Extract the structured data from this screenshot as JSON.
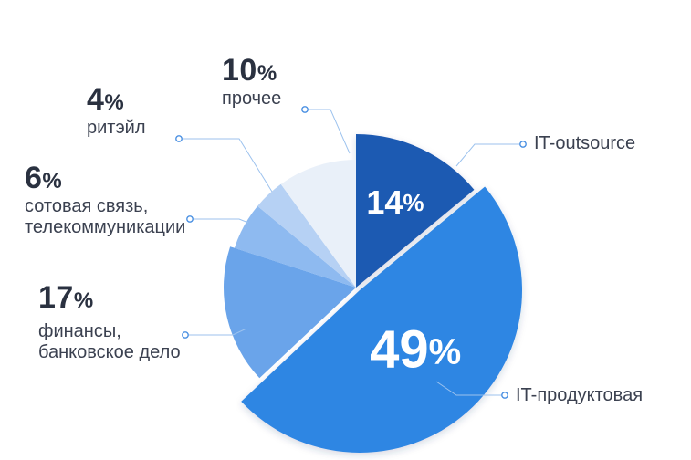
{
  "chart_data": {
    "type": "pie",
    "title": "",
    "slices": [
      {
        "label": "IT-outsource",
        "value": 14,
        "color": "#1e5ab2",
        "display": "14",
        "label_lines": [
          "IT-outsource"
        ]
      },
      {
        "label": "IT-продуктовая",
        "value": 49,
        "color": "#2f86e3",
        "display": "49",
        "label_lines": [
          "IT-продуктовая"
        ]
      },
      {
        "label": "финансы, банковское дело",
        "value": 17,
        "color": "#6aa4ea",
        "display": "17",
        "label_lines": [
          "финансы,",
          "банковское дело"
        ]
      },
      {
        "label": "сотовая связь, телекоммуникации",
        "value": 6,
        "color": "#8ebaf0",
        "display": "6",
        "label_lines": [
          "сотовая связь,",
          "телекоммуникации"
        ]
      },
      {
        "label": "ритэйл",
        "value": 4,
        "color": "#b6d1f4",
        "display": "4",
        "label_lines": [
          "ритэйл"
        ]
      },
      {
        "label": "прочее",
        "value": 10,
        "color": "#e9f0f9",
        "display": "10",
        "label_lines": [
          "прочее"
        ]
      }
    ],
    "percent_sign": "%"
  }
}
